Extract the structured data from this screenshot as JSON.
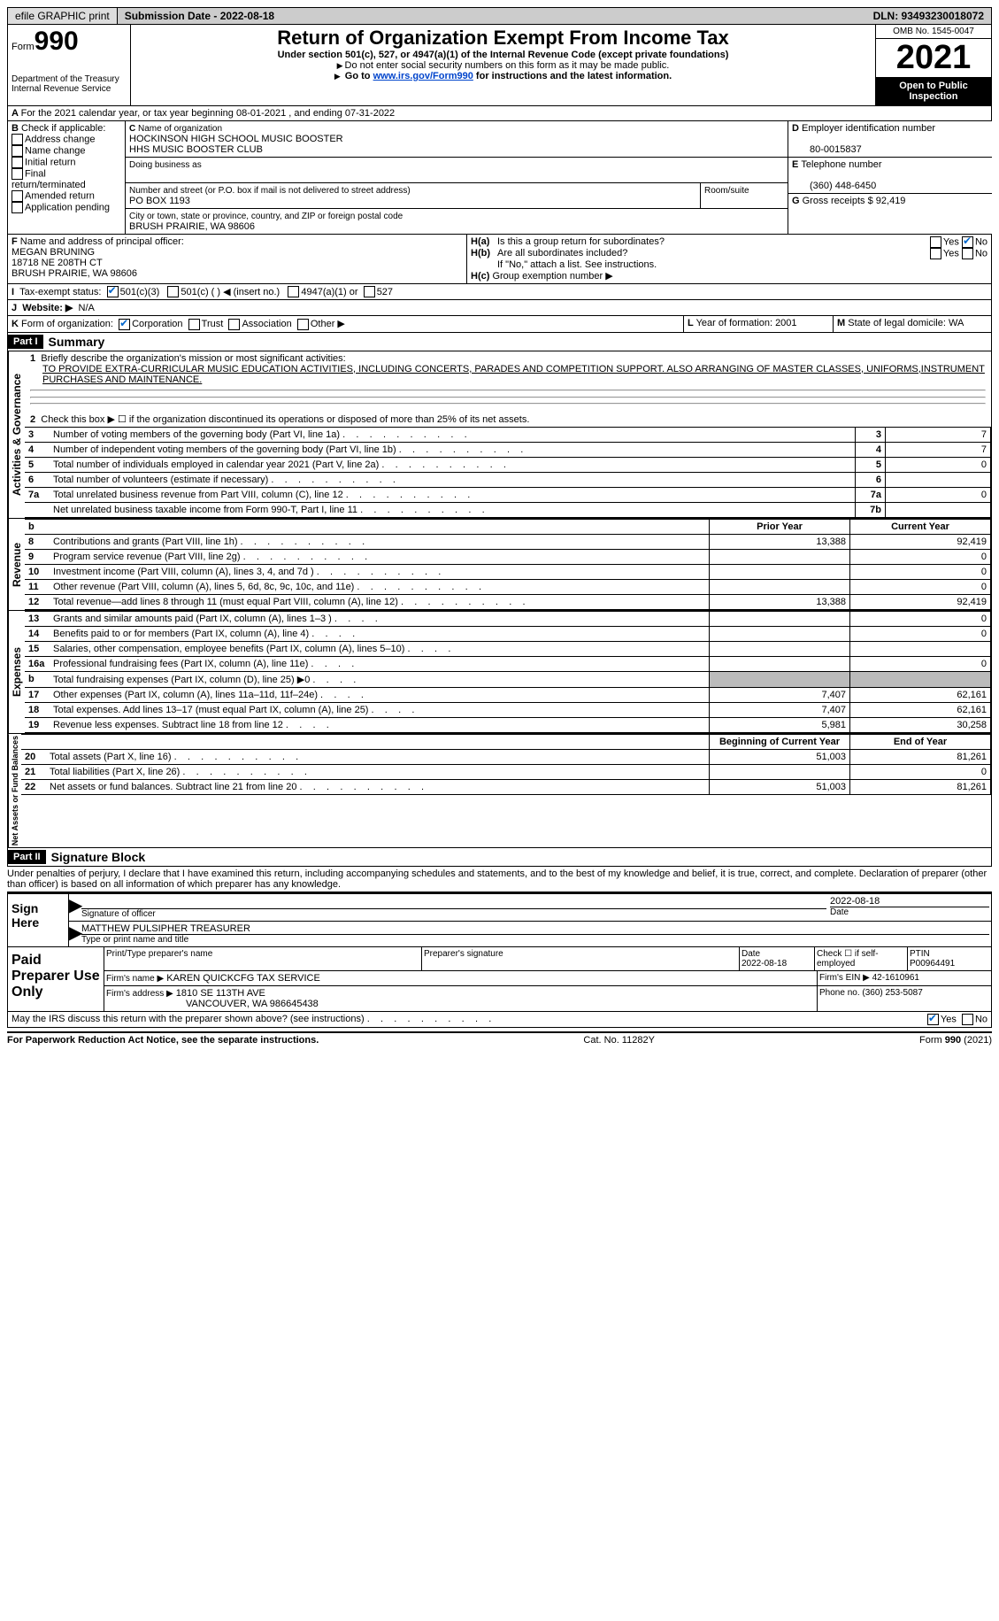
{
  "topbar": {
    "efile": "efile GRAPHIC print",
    "submission_label": "Submission Date - 2022-08-18",
    "dln": "DLN: 93493230018072"
  },
  "header": {
    "form_label": "Form",
    "form_number": "990",
    "dept": "Department of the Treasury",
    "irs": "Internal Revenue Service",
    "title": "Return of Organization Exempt From Income Tax",
    "subtitle": "Under section 501(c), 527, or 4947(a)(1) of the Internal Revenue Code (except private foundations)",
    "note1": "Do not enter social security numbers on this form as it may be made public.",
    "note2_pre": "Go to ",
    "note2_link": "www.irs.gov/Form990",
    "note2_post": " for instructions and the latest information.",
    "omb": "OMB No. 1545-0047",
    "year": "2021",
    "inspect": "Open to Public Inspection"
  },
  "a_line": "For the 2021 calendar year, or tax year beginning 08-01-2021    , and ending 07-31-2022",
  "b": {
    "label": "Check if applicable:",
    "items": [
      "Address change",
      "Name change",
      "Initial return",
      "Final return/terminated",
      "Amended return",
      "Application pending"
    ]
  },
  "c": {
    "name_label": "Name of organization",
    "name": "HOCKINSON HIGH SCHOOL MUSIC BOOSTER",
    "name2": "HHS MUSIC BOOSTER CLUB",
    "dba_label": "Doing business as",
    "addr_label": "Number and street (or P.O. box if mail is not delivered to street address)",
    "addr": "PO BOX 1193",
    "room_label": "Room/suite",
    "city_label": "City or town, state or province, country, and ZIP or foreign postal code",
    "city": "BRUSH PRAIRIE, WA  98606"
  },
  "d": {
    "label": "Employer identification number",
    "val": "80-0015837"
  },
  "e": {
    "label": "Telephone number",
    "val": "(360) 448-6450"
  },
  "g": {
    "label": "Gross receipts $",
    "val": "92,419"
  },
  "f": {
    "label": "Name and address of principal officer:",
    "name": "MEGAN BRUNING",
    "addr1": "18718 NE 208TH CT",
    "addr2": "BRUSH PRAIRIE, WA  98606"
  },
  "h": {
    "a": "Is this a group return for subordinates?",
    "b": "Are all subordinates included?",
    "b_note": "If \"No,\" attach a list. See instructions.",
    "c": "Group exemption number ▶"
  },
  "i": {
    "label": "Tax-exempt status:",
    "opts": [
      "501(c)(3)",
      "501(c) (  ) ◀ (insert no.)",
      "4947(a)(1) or",
      "527"
    ]
  },
  "j": {
    "label": "Website: ▶",
    "val": "N/A"
  },
  "k": {
    "label": "Form of organization:",
    "opts": [
      "Corporation",
      "Trust",
      "Association",
      "Other ▶"
    ]
  },
  "l": {
    "label": "Year of formation:",
    "val": "2001"
  },
  "m": {
    "label": "State of legal domicile:",
    "val": "WA"
  },
  "part1": {
    "num": "Part I",
    "title": "Summary"
  },
  "mission": {
    "label": "Briefly describe the organization's mission or most significant activities:",
    "text": "TO PROVIDE EXTRA-CURRICULAR MUSIC EDUCATION ACTIVITIES, INCLUDING CONCERTS, PARADES AND COMPETITION SUPPORT. ALSO ARRANGING OF MASTER CLASSES, UNIFORMS,INSTRUMENT PURCHASES AND MAINTENANCE."
  },
  "line2": "Check this box ▶ ☐ if the organization discontinued its operations or disposed of more than 25% of its net assets.",
  "sections": {
    "activities": "Activities & Governance",
    "revenue": "Revenue",
    "expenses": "Expenses",
    "netassets": "Net Assets or Fund Balances"
  },
  "gov_rows": [
    {
      "n": "3",
      "t": "Number of voting members of the governing body (Part VI, line 1a)",
      "box": "3",
      "v": "7"
    },
    {
      "n": "4",
      "t": "Number of independent voting members of the governing body (Part VI, line 1b)",
      "box": "4",
      "v": "7"
    },
    {
      "n": "5",
      "t": "Total number of individuals employed in calendar year 2021 (Part V, line 2a)",
      "box": "5",
      "v": "0"
    },
    {
      "n": "6",
      "t": "Total number of volunteers (estimate if necessary)",
      "box": "6",
      "v": ""
    },
    {
      "n": "7a",
      "t": "Total unrelated business revenue from Part VIII, column (C), line 12",
      "box": "7a",
      "v": "0"
    },
    {
      "n": "",
      "t": "Net unrelated business taxable income from Form 990-T, Part I, line 11",
      "box": "7b",
      "v": ""
    }
  ],
  "col_hdr": {
    "prior": "Prior Year",
    "current": "Current Year"
  },
  "rev_rows": [
    {
      "n": "8",
      "t": "Contributions and grants (Part VIII, line 1h)",
      "p": "13,388",
      "c": "92,419"
    },
    {
      "n": "9",
      "t": "Program service revenue (Part VIII, line 2g)",
      "p": "",
      "c": "0"
    },
    {
      "n": "10",
      "t": "Investment income (Part VIII, column (A), lines 3, 4, and 7d )",
      "p": "",
      "c": "0"
    },
    {
      "n": "11",
      "t": "Other revenue (Part VIII, column (A), lines 5, 6d, 8c, 9c, 10c, and 11e)",
      "p": "",
      "c": "0"
    },
    {
      "n": "12",
      "t": "Total revenue—add lines 8 through 11 (must equal Part VIII, column (A), line 12)",
      "p": "13,388",
      "c": "92,419"
    }
  ],
  "exp_rows": [
    {
      "n": "13",
      "t": "Grants and similar amounts paid (Part IX, column (A), lines 1–3 )",
      "p": "",
      "c": "0"
    },
    {
      "n": "14",
      "t": "Benefits paid to or for members (Part IX, column (A), line 4)",
      "p": "",
      "c": "0"
    },
    {
      "n": "15",
      "t": "Salaries, other compensation, employee benefits (Part IX, column (A), lines 5–10)",
      "p": "",
      "c": ""
    },
    {
      "n": "16a",
      "t": "Professional fundraising fees (Part IX, column (A), line 11e)",
      "p": "",
      "c": "0"
    },
    {
      "n": "b",
      "t": "Total fundraising expenses (Part IX, column (D), line 25) ▶0",
      "p": "GREY",
      "c": "GREY"
    },
    {
      "n": "17",
      "t": "Other expenses (Part IX, column (A), lines 11a–11d, 11f–24e)",
      "p": "7,407",
      "c": "62,161"
    },
    {
      "n": "18",
      "t": "Total expenses. Add lines 13–17 (must equal Part IX, column (A), line 25)",
      "p": "7,407",
      "c": "62,161"
    },
    {
      "n": "19",
      "t": "Revenue less expenses. Subtract line 18 from line 12",
      "p": "5,981",
      "c": "30,258"
    }
  ],
  "na_hdr": {
    "begin": "Beginning of Current Year",
    "end": "End of Year"
  },
  "na_rows": [
    {
      "n": "20",
      "t": "Total assets (Part X, line 16)",
      "p": "51,003",
      "c": "81,261"
    },
    {
      "n": "21",
      "t": "Total liabilities (Part X, line 26)",
      "p": "",
      "c": "0"
    },
    {
      "n": "22",
      "t": "Net assets or fund balances. Subtract line 21 from line 20",
      "p": "51,003",
      "c": "81,261"
    }
  ],
  "part2": {
    "num": "Part II",
    "title": "Signature Block"
  },
  "perjury": "Under penalties of perjury, I declare that I have examined this return, including accompanying schedules and statements, and to the best of my knowledge and belief, it is true, correct, and complete. Declaration of preparer (other than officer) is based on all information of which preparer has any knowledge.",
  "sign": {
    "here": "Sign Here",
    "sig_officer": "Signature of officer",
    "date": "2022-08-18",
    "date_lbl": "Date",
    "name": "MATTHEW PULSIPHER  TREASURER",
    "name_lbl": "Type or print name and title"
  },
  "paid": {
    "label": "Paid Preparer Use Only",
    "print_lbl": "Print/Type preparer's name",
    "sig_lbl": "Preparer's signature",
    "date_lbl": "Date",
    "date": "2022-08-18",
    "check_lbl": "Check ☐ if self-employed",
    "ptin_lbl": "PTIN",
    "ptin": "P00964491",
    "firm_lbl": "Firm's name    ▶",
    "firm": "KAREN QUICKCFG TAX SERVICE",
    "ein_lbl": "Firm's EIN ▶",
    "ein": "42-1610961",
    "addr_lbl": "Firm's address ▶",
    "addr1": "1810 SE 113TH AVE",
    "addr2": "VANCOUVER, WA  986645438",
    "phone_lbl": "Phone no.",
    "phone": "(360) 253-5087"
  },
  "discuss": "May the IRS discuss this return with the preparer shown above? (see instructions)",
  "footer": {
    "left": "For Paperwork Reduction Act Notice, see the separate instructions.",
    "mid": "Cat. No. 11282Y",
    "right": "Form 990 (2021)"
  }
}
